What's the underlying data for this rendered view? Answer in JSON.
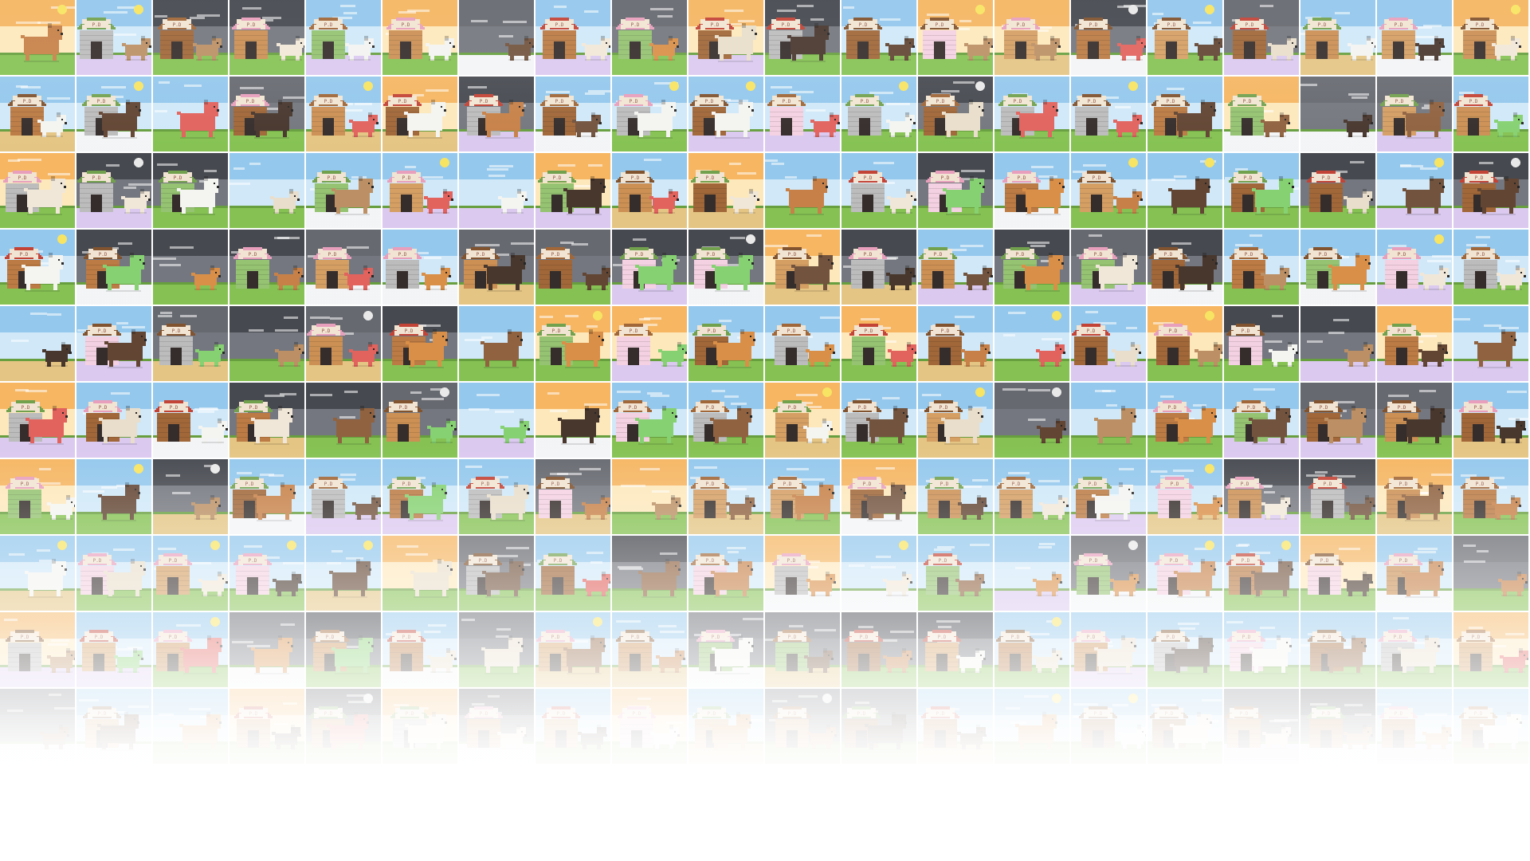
{
  "gallery": {
    "columns": 20,
    "rows": 10,
    "sky_colors": {
      "day": "#8ec5ec",
      "day_light": "#cde7f8",
      "sunset": "#f5b25a",
      "sunset_light": "#fde7b8",
      "night": "#3c3f46",
      "night_light": "#6d7078",
      "storm": "#5e6168"
    },
    "ground_colors": {
      "grass": "#7fbf4a",
      "grass_dark": "#5f9a35",
      "snow": "#f2f4f6",
      "lavender": "#d9c6ef",
      "sand": "#e3c27d"
    },
    "house_colors": [
      "#c98a4b",
      "#b8743a",
      "#9c5f2e",
      "#8fc06a",
      "#f4cfe0",
      "#b9b9b9",
      "#d39a5c"
    ],
    "roof_colors": [
      "#c0392b",
      "#9c5f2e",
      "#7a4a24",
      "#6a9c45",
      "#e79ab9"
    ],
    "dog_colors": [
      "#c47a3e",
      "#8a5a36",
      "#e8dcc8",
      "#f3f3f0",
      "#6b4a34",
      "#d8893e",
      "#5a3b28",
      "#f0e6d6",
      "#7fcf6a",
      "#e05a55",
      "#b88a5c",
      "#3e2c22"
    ],
    "badge_color": "#f1e3d0",
    "badge_text": "P.D",
    "sun_color": "#f7e35a",
    "moon_color": "#e8e8e8"
  }
}
